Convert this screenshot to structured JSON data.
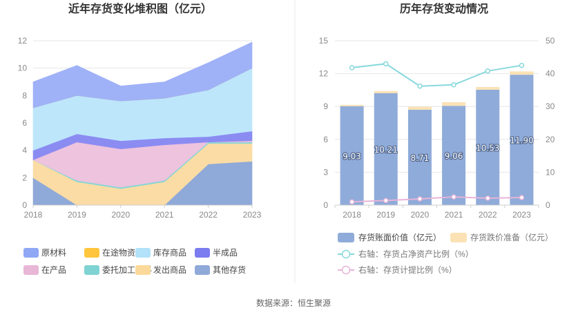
{
  "left_chart_title": "近年存货变化堆积图（亿元）",
  "right_chart_title": "历年存货变动情况",
  "source_text": "数据来源：恒生聚源",
  "chart_data": [
    {
      "type": "area",
      "stacked": true,
      "title": "近年存货变化堆积图（亿元）",
      "categories": [
        "2018",
        "2019",
        "2020",
        "2021",
        "2022",
        "2023"
      ],
      "ylim": [
        0,
        12
      ],
      "yticks": [
        "0",
        "2",
        "4",
        "6",
        "8",
        "10",
        "12"
      ],
      "series": [
        {
          "name": "其他存货",
          "color": "#8fa9d8",
          "values": [
            2.0,
            0,
            0,
            0,
            3.0,
            3.2
          ]
        },
        {
          "name": "发出商品",
          "color": "#fbdca5",
          "values": [
            1.3,
            1.7,
            1.2,
            1.7,
            1.5,
            1.3
          ]
        },
        {
          "name": "委托加工材料",
          "color": "#85d6d6",
          "values": [
            0,
            0.1,
            0.1,
            0.1,
            0.1,
            0.1
          ]
        },
        {
          "name": "在产品",
          "color": "#edc3de",
          "values": [
            0,
            2.8,
            2.8,
            2.6,
            0,
            0.1
          ]
        },
        {
          "name": "半成品",
          "color": "#8b8cf2",
          "values": [
            0.7,
            0.6,
            0.6,
            0.5,
            0.4,
            0.7
          ]
        },
        {
          "name": "库存商品",
          "color": "#bde6fb",
          "values": [
            3.1,
            2.8,
            2.9,
            2.9,
            3.4,
            4.6
          ]
        },
        {
          "name": "在途物资",
          "color": "#ffc63d",
          "values": [
            0,
            0,
            0,
            0,
            0,
            0
          ]
        },
        {
          "name": "原材料",
          "color": "#9fb1f7",
          "values": [
            1.9,
            2.2,
            1.1,
            1.2,
            2.0,
            1.9
          ]
        }
      ],
      "legend": [
        {
          "name": "原材料",
          "color": "#8fa7f5"
        },
        {
          "name": "在途物资",
          "color": "#ffc63d"
        },
        {
          "name": "库存商品",
          "color": "#b1e2fa"
        },
        {
          "name": "半成品",
          "color": "#7b7cf0"
        },
        {
          "name": "在产品",
          "color": "#e8b6d7"
        },
        {
          "name": "委托加工材料",
          "color": "#7fd3d3"
        },
        {
          "name": "发出商品",
          "color": "#fbd99a"
        },
        {
          "name": "其他存货",
          "color": "#8fa9d8"
        }
      ]
    },
    {
      "type": "bar",
      "stacked": true,
      "title": "历年存货变动情况",
      "categories": [
        "2018",
        "2019",
        "2020",
        "2021",
        "2022",
        "2023"
      ],
      "ylim": [
        0,
        15
      ],
      "yticks": [
        "0",
        "3",
        "6",
        "9",
        "12",
        "15"
      ],
      "y2lim": [
        0,
        50
      ],
      "y2ticks": [
        "0",
        "10",
        "20",
        "30",
        "40",
        "50"
      ],
      "series": [
        {
          "name": "存货账面价值（亿元）",
          "color": "#8fabd9",
          "values": [
            9.03,
            10.21,
            8.71,
            9.06,
            10.53,
            11.9
          ],
          "labels": [
            "9.03",
            "10.21",
            "8.71",
            "9.06",
            "10.53",
            "11.90"
          ]
        },
        {
          "name": "存货跌价准备（亿元）",
          "color": "#fbe2b5",
          "values": [
            0.12,
            0.2,
            0.27,
            0.33,
            0.25,
            0.3
          ]
        }
      ],
      "lines": [
        {
          "name": "右轴：存货占净资产比例（%）",
          "color": "#88d8dc",
          "values": [
            41.8,
            43.0,
            36.2,
            36.6,
            40.8,
            42.5
          ]
        },
        {
          "name": "右轴：存货计提比例（%）",
          "color": "#e7b4d8",
          "values": [
            1.0,
            1.4,
            1.9,
            2.5,
            2.1,
            2.3
          ]
        }
      ]
    }
  ]
}
